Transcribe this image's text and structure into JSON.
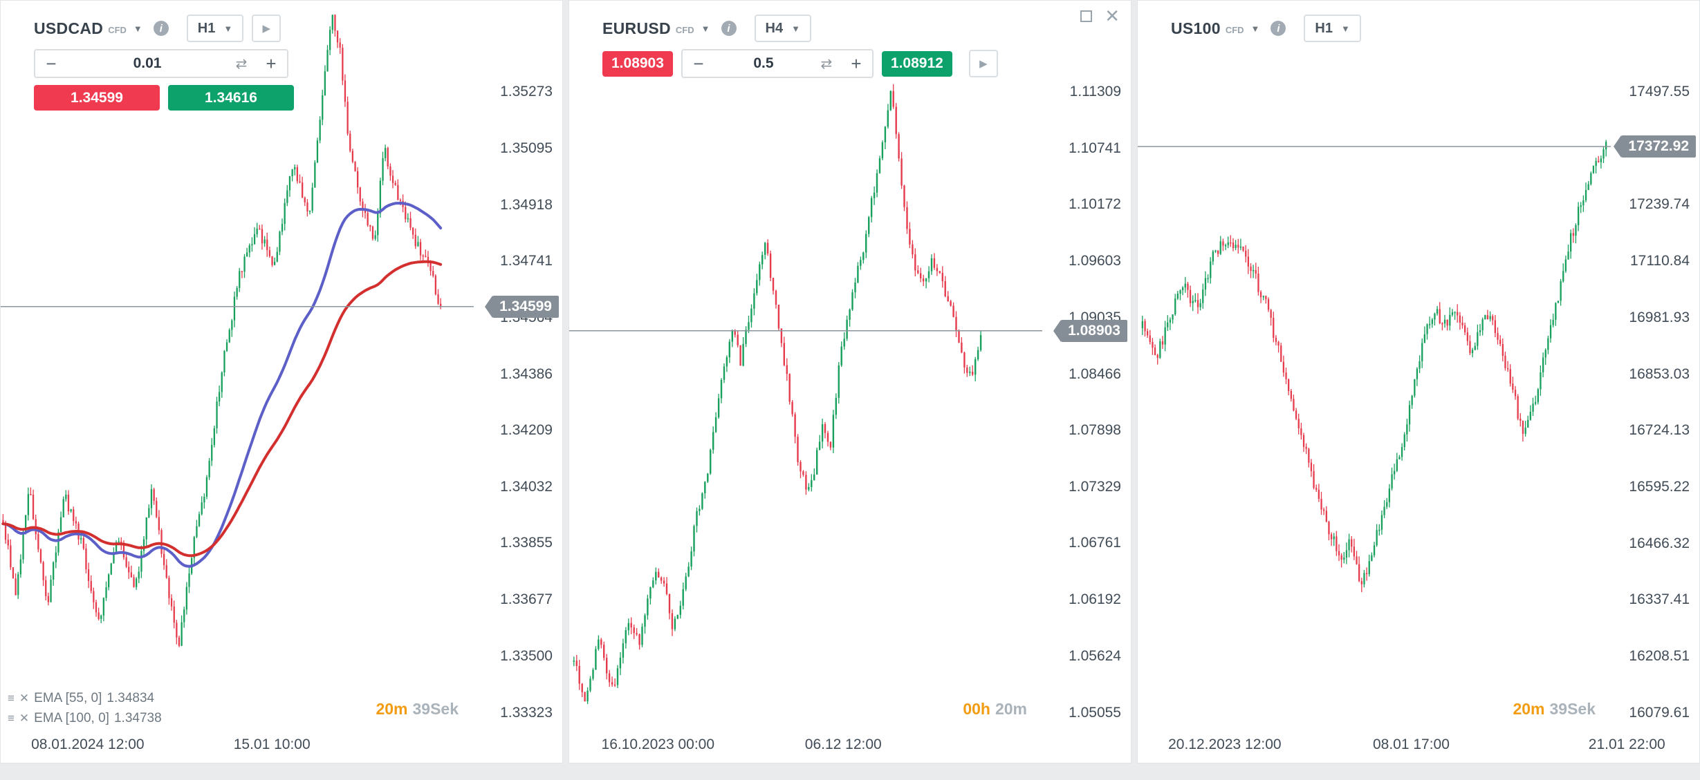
{
  "colors": {
    "candle_up": "#16a05c",
    "candle_down": "#e63b4c",
    "sell_red": "#ef3a4f",
    "buy_green": "#0da16b",
    "badge_bg": "#858d96",
    "price_line": "#8b949c",
    "timer_orange": "#f39c12",
    "timer_gray": "#aab2ba",
    "ema_fast": "#5b5fc7",
    "ema_slow": "#d32f2f"
  },
  "icons": {
    "chevron": "▼",
    "info": "i",
    "play": "▶",
    "minus": "−",
    "plus": "+",
    "refresh": "⇄",
    "legend_menu": "≡",
    "legend_close": "✕",
    "close": "✕"
  },
  "panels": [
    {
      "symbol": "USDCAD",
      "instrument_type": "CFD",
      "timeframe": "H1",
      "volume_step": "0.01",
      "sell_price": "1.34599",
      "buy_price": "1.34616",
      "current_price": 1.34599,
      "current_price_label": "1.34599",
      "timer": {
        "primary": "20m",
        "secondary": "39Sek"
      },
      "price_labels": [
        {
          "text": "1.35273",
          "price": 1.35273
        },
        {
          "text": "1.35095",
          "price": 1.35095
        },
        {
          "text": "1.34918",
          "price": 1.34918
        },
        {
          "text": "1.34741",
          "price": 1.34741
        },
        {
          "text": "1.34564",
          "price": 1.34564
        },
        {
          "text": "1.34386",
          "price": 1.34386
        },
        {
          "text": "1.34209",
          "price": 1.34209
        },
        {
          "text": "1.34032",
          "price": 1.34032
        },
        {
          "text": "1.33855",
          "price": 1.33855
        },
        {
          "text": "1.33677",
          "price": 1.33677
        },
        {
          "text": "1.33500",
          "price": 1.335
        },
        {
          "text": "1.33323",
          "price": 1.33323
        }
      ],
      "time_labels": [
        {
          "text": "08.01.2024 12:00",
          "x": 0.155
        },
        {
          "text": "15.01 10:00",
          "x": 0.483
        }
      ],
      "ema_legend": [
        {
          "label": "EMA [55, 0]",
          "value": "1.34834"
        },
        {
          "label": "EMA [100, 0]",
          "value": "1.34738"
        }
      ],
      "chart_data": {
        "type": "candlestick",
        "axis_top": 1.35273,
        "axis_bottom": 1.33323,
        "seed": 7,
        "candles": 175,
        "x_start": 0.005,
        "x_end": 0.93,
        "volatility": 0.00035,
        "wick": 0.00022,
        "path": [
          [
            0.0,
            1.3392
          ],
          [
            0.03,
            1.337
          ],
          [
            0.06,
            1.3403
          ],
          [
            0.1,
            1.3365
          ],
          [
            0.14,
            1.3401
          ],
          [
            0.18,
            1.3385
          ],
          [
            0.22,
            1.336
          ],
          [
            0.26,
            1.3388
          ],
          [
            0.3,
            1.337
          ],
          [
            0.34,
            1.3402
          ],
          [
            0.38,
            1.3368
          ],
          [
            0.4,
            1.3352
          ],
          [
            0.44,
            1.339
          ],
          [
            0.46,
            1.34
          ],
          [
            0.5,
            1.344
          ],
          [
            0.54,
            1.347
          ],
          [
            0.58,
            1.3485
          ],
          [
            0.62,
            1.3472
          ],
          [
            0.66,
            1.3505
          ],
          [
            0.7,
            1.3488
          ],
          [
            0.73,
            1.3528
          ],
          [
            0.75,
            1.3552
          ],
          [
            0.77,
            1.354
          ],
          [
            0.79,
            1.351
          ],
          [
            0.82,
            1.3492
          ],
          [
            0.85,
            1.348
          ],
          [
            0.87,
            1.351
          ],
          [
            0.89,
            1.35
          ],
          [
            0.92,
            1.3488
          ],
          [
            0.95,
            1.3478
          ],
          [
            0.98,
            1.347
          ],
          [
            1.0,
            1.3459
          ]
        ],
        "emas": [
          {
            "period": 55,
            "color": "ema_fast"
          },
          {
            "period": 100,
            "color": "ema_slow"
          }
        ]
      }
    },
    {
      "symbol": "EURUSD",
      "instrument_type": "CFD",
      "timeframe": "H4",
      "volume_step": "0.5",
      "sell_price": "1.08903",
      "buy_price": "1.08912",
      "current_price": 1.08903,
      "current_price_label": "1.08903",
      "timer": {
        "primary": "00h",
        "secondary": "20m"
      },
      "price_labels": [
        {
          "text": "1.11309",
          "price": 1.11309
        },
        {
          "text": "1.10741",
          "price": 1.10741
        },
        {
          "text": "1.10172",
          "price": 1.10172
        },
        {
          "text": "1.09603",
          "price": 1.09603
        },
        {
          "text": "1.09035",
          "price": 1.09035
        },
        {
          "text": "1.08466",
          "price": 1.08466
        },
        {
          "text": "1.07898",
          "price": 1.07898
        },
        {
          "text": "1.07329",
          "price": 1.07329
        },
        {
          "text": "1.06761",
          "price": 1.06761
        },
        {
          "text": "1.06192",
          "price": 1.06192
        },
        {
          "text": "1.05624",
          "price": 1.05624
        },
        {
          "text": "1.05055",
          "price": 1.05055
        }
      ],
      "time_labels": [
        {
          "text": "16.10.2023 00:00",
          "x": 0.158
        },
        {
          "text": "06.12 12:00",
          "x": 0.488
        }
      ],
      "chart_data": {
        "type": "candlestick",
        "axis_top": 1.11309,
        "axis_bottom": 1.05055,
        "seed": 13,
        "candles": 150,
        "x_start": 0.01,
        "x_end": 0.87,
        "volatility": 0.0012,
        "wick": 0.0007,
        "path": [
          [
            0.0,
            1.056
          ],
          [
            0.03,
            1.0515
          ],
          [
            0.06,
            1.0585
          ],
          [
            0.08,
            1.0545
          ],
          [
            0.1,
            1.053
          ],
          [
            0.13,
            1.06
          ],
          [
            0.16,
            1.0575
          ],
          [
            0.19,
            1.064
          ],
          [
            0.22,
            1.0645
          ],
          [
            0.24,
            1.059
          ],
          [
            0.27,
            1.063
          ],
          [
            0.3,
            1.07
          ],
          [
            0.33,
            1.075
          ],
          [
            0.36,
            1.084
          ],
          [
            0.39,
            1.0895
          ],
          [
            0.41,
            1.086
          ],
          [
            0.44,
            1.092
          ],
          [
            0.47,
            1.0985
          ],
          [
            0.49,
            1.093
          ],
          [
            0.51,
            1.088
          ],
          [
            0.53,
            1.0825
          ],
          [
            0.55,
            1.076
          ],
          [
            0.57,
            1.0735
          ],
          [
            0.59,
            1.0745
          ],
          [
            0.61,
            1.08
          ],
          [
            0.63,
            1.077
          ],
          [
            0.65,
            1.085
          ],
          [
            0.67,
            1.09
          ],
          [
            0.69,
            1.094
          ],
          [
            0.71,
            1.097
          ],
          [
            0.73,
            1.1015
          ],
          [
            0.76,
            1.108
          ],
          [
            0.78,
            1.113
          ],
          [
            0.8,
            1.106
          ],
          [
            0.82,
            1.099
          ],
          [
            0.84,
            1.095
          ],
          [
            0.86,
            1.094
          ],
          [
            0.88,
            1.096
          ],
          [
            0.9,
            1.0945
          ],
          [
            0.92,
            1.092
          ],
          [
            0.94,
            1.089
          ],
          [
            0.96,
            1.0855
          ],
          [
            0.98,
            1.0845
          ],
          [
            1.0,
            1.089
          ]
        ]
      }
    },
    {
      "symbol": "US100",
      "instrument_type": "CFD",
      "timeframe": "H1",
      "current_price": 17372.92,
      "current_price_label": "17372.92",
      "timer": {
        "primary": "20m",
        "secondary": "39Sek"
      },
      "price_labels": [
        {
          "text": "17497.55",
          "price": 17497.55
        },
        {
          "text": "17239.74",
          "price": 17239.74
        },
        {
          "text": "17110.84",
          "price": 17110.84
        },
        {
          "text": "16981.93",
          "price": 16981.93
        },
        {
          "text": "16853.03",
          "price": 16853.03
        },
        {
          "text": "16724.13",
          "price": 16724.13
        },
        {
          "text": "16595.22",
          "price": 16595.22
        },
        {
          "text": "16466.32",
          "price": 16466.32
        },
        {
          "text": "16337.41",
          "price": 16337.41
        },
        {
          "text": "16208.51",
          "price": 16208.51
        },
        {
          "text": "16079.61",
          "price": 16079.61
        }
      ],
      "time_labels": [
        {
          "text": "20.12.2023 12:00",
          "x": 0.155
        },
        {
          "text": "08.01 17:00",
          "x": 0.487
        },
        {
          "text": "21.01 22:00",
          "x": 0.871
        }
      ],
      "chart_data": {
        "type": "candlestick",
        "axis_top": 17497.55,
        "axis_bottom": 16079.61,
        "seed": 21,
        "candles": 185,
        "x_start": 0.01,
        "x_end": 0.99,
        "volatility": 30,
        "wick": 18,
        "path": [
          [
            0.0,
            16960
          ],
          [
            0.03,
            16890
          ],
          [
            0.06,
            16990
          ],
          [
            0.09,
            17050
          ],
          [
            0.12,
            17000
          ],
          [
            0.15,
            17120
          ],
          [
            0.18,
            17160
          ],
          [
            0.21,
            17150
          ],
          [
            0.24,
            17080
          ],
          [
            0.27,
            17000
          ],
          [
            0.3,
            16880
          ],
          [
            0.33,
            16760
          ],
          [
            0.36,
            16650
          ],
          [
            0.38,
            16560
          ],
          [
            0.4,
            16500
          ],
          [
            0.43,
            16430
          ],
          [
            0.45,
            16480
          ],
          [
            0.47,
            16360
          ],
          [
            0.49,
            16420
          ],
          [
            0.52,
            16550
          ],
          [
            0.55,
            16650
          ],
          [
            0.58,
            16800
          ],
          [
            0.61,
            16950
          ],
          [
            0.63,
            17000
          ],
          [
            0.65,
            16960
          ],
          [
            0.67,
            17010
          ],
          [
            0.69,
            16950
          ],
          [
            0.71,
            16900
          ],
          [
            0.73,
            16960
          ],
          [
            0.75,
            17000
          ],
          [
            0.77,
            16920
          ],
          [
            0.79,
            16850
          ],
          [
            0.82,
            16720
          ],
          [
            0.84,
            16760
          ],
          [
            0.86,
            16860
          ],
          [
            0.88,
            16950
          ],
          [
            0.9,
            17050
          ],
          [
            0.92,
            17150
          ],
          [
            0.94,
            17220
          ],
          [
            0.96,
            17280
          ],
          [
            0.98,
            17340
          ],
          [
            1.0,
            17373
          ]
        ]
      }
    }
  ]
}
